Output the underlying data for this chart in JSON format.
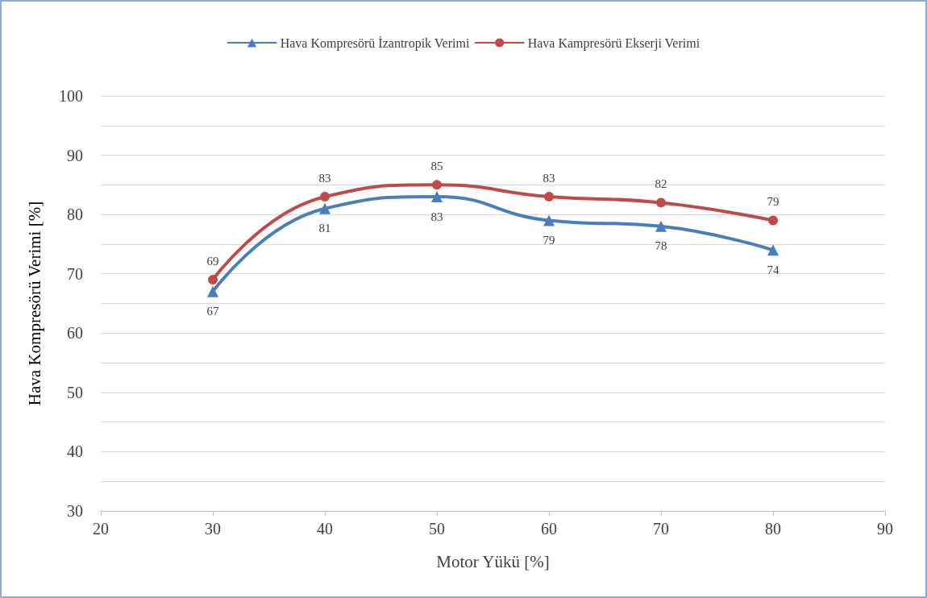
{
  "chart_data": {
    "type": "line",
    "xlabel": "Motor Yükü [%]",
    "ylabel": "Hava Kompresörü Verimi [%]",
    "x": [
      30,
      40,
      50,
      60,
      70,
      80
    ],
    "series": [
      {
        "name": "Hava Kompresörü İzantropik Verimi",
        "color": "#4a7ebb",
        "marker": "triangle",
        "values": [
          67,
          81,
          83,
          79,
          78,
          74
        ]
      },
      {
        "name": "Hava Kampresörü Ekserji Verimi",
        "color": "#be4b48",
        "marker": "circle",
        "values": [
          69,
          83,
          85,
          83,
          82,
          79
        ]
      }
    ],
    "xlim": [
      20,
      90
    ],
    "xticks": [
      20,
      30,
      40,
      50,
      60,
      70,
      80,
      90
    ],
    "ylim": [
      30,
      100
    ],
    "yticks": [
      30,
      {
        "value": 35,
        "label": null
      },
      40,
      {
        "value": 45,
        "label": null
      },
      50,
      {
        "value": 55,
        "label": null
      },
      60,
      {
        "value": 65,
        "label": null
      },
      70,
      {
        "value": 75,
        "label": null
      },
      80,
      {
        "value": 85,
        "label": null
      },
      90,
      {
        "value": 95,
        "label": null
      },
      100
    ],
    "grid": "y",
    "legend": "top",
    "data_labels": true,
    "line_style": "solid"
  }
}
